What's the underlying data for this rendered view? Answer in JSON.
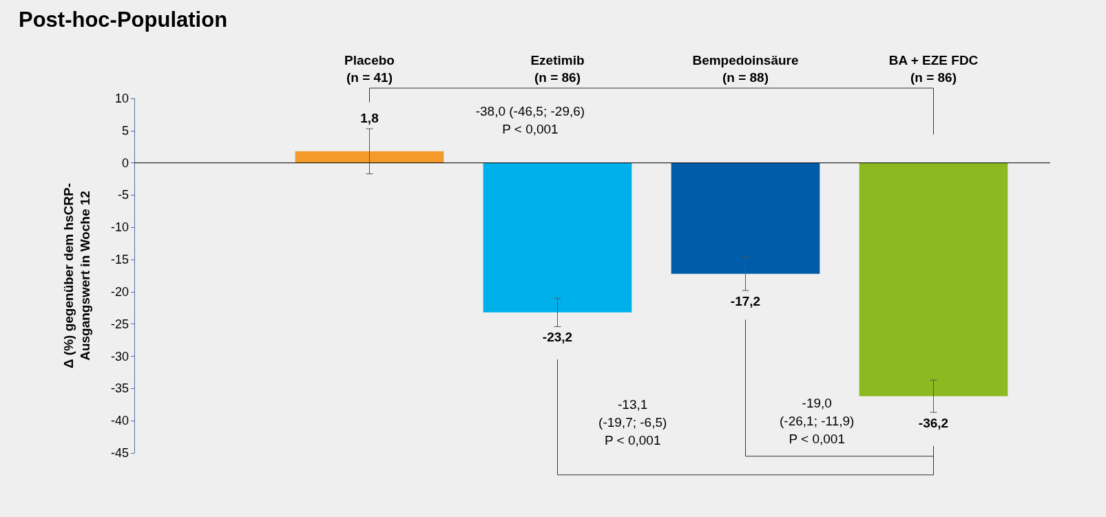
{
  "chart_data": {
    "type": "bar",
    "title": "Post-hoc-Population",
    "ylabel": "Δ (%) gegenüber dem hsCRP-\nAusgangswert in Woche 12",
    "categories": [
      "Placebo\n(n = 41)",
      "Ezetimib\n(n = 86)",
      "Bempedoinsäure\n(n = 88)",
      "BA + EZE FDC\n(n = 86)"
    ],
    "values": [
      1.8,
      -23.2,
      -17.2,
      -36.2
    ],
    "colors": [
      "#f39a2b",
      "#00b0eb",
      "#005ca8",
      "#8cb820"
    ],
    "errors": [
      3.5,
      2.2,
      2.6,
      2.5
    ],
    "value_labels": [
      "1,8",
      "-23,2",
      "-17,2",
      "-36,2"
    ],
    "ylim": [
      -45,
      10
    ],
    "yticks": [
      10,
      5,
      0,
      -5,
      -10,
      -15,
      -20,
      -25,
      -30,
      -35,
      -40,
      -45
    ],
    "annotations": [
      "-38,0 (-46,5; -29,6)\nP < 0,001",
      "-13,1\n(-19,7; -6,5)\nP < 0,001",
      "-19,0\n(-26,1; -11,9)\nP < 0,001"
    ]
  }
}
